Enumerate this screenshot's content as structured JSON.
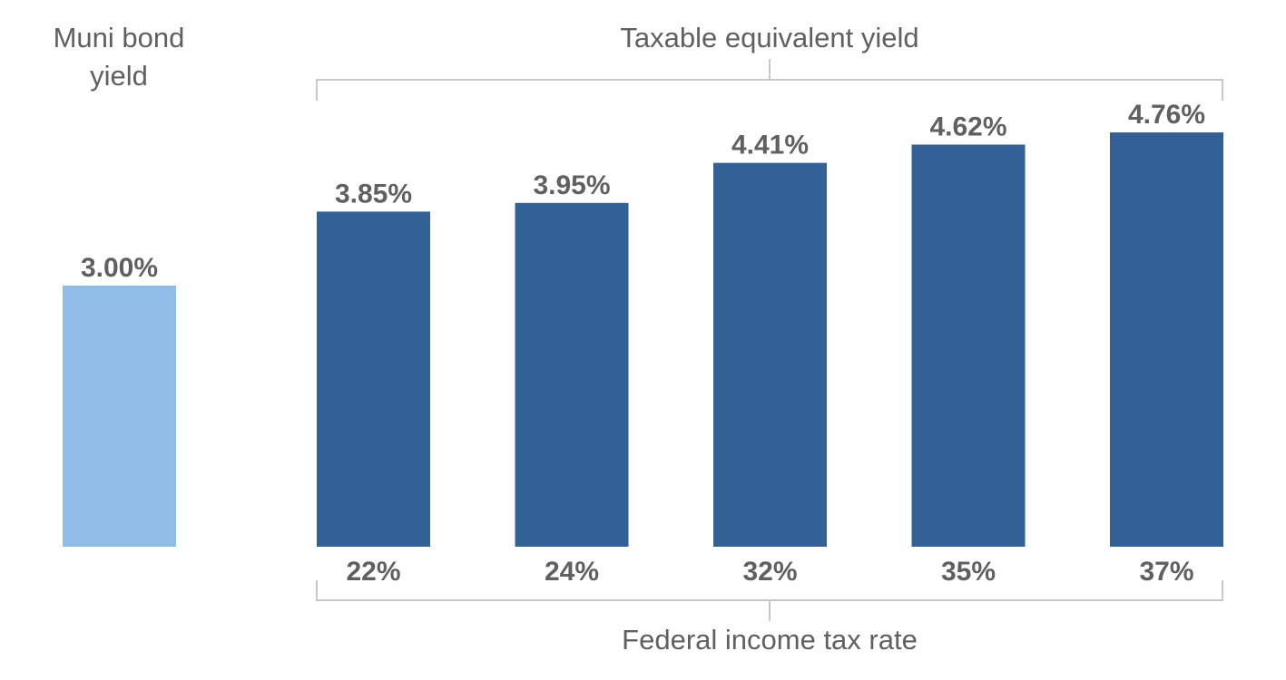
{
  "chart_data": {
    "type": "bar",
    "title": "",
    "muni": {
      "label_line1": "Muni bond",
      "label_line2": "yield",
      "value": 3.0,
      "value_label": "3.00%",
      "color": "#8fbde6"
    },
    "top_group_label": "Taxable equivalent yield",
    "xlabel": "Federal income tax rate",
    "categories": [
      "22%",
      "24%",
      "32%",
      "35%",
      "37%"
    ],
    "values": [
      3.85,
      3.95,
      4.41,
      4.62,
      4.76
    ],
    "value_labels": [
      "3.85%",
      "3.95%",
      "4.41%",
      "4.62%",
      "4.76%"
    ],
    "bar_color": "#336195",
    "text_color": "#606060",
    "bracket_color": "#c8c8c8",
    "ylim": [
      0,
      5
    ]
  }
}
